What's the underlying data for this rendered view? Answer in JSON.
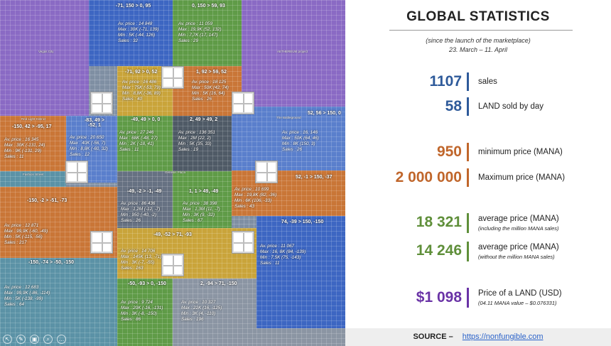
{
  "map": {
    "tools": [
      "↖",
      "✎",
      "▣",
      "⌕",
      "…"
    ],
    "place_names": {
      "vegas": "Vegas City",
      "aethereum": "AETHEREUM project",
      "red_light": "Red Light District",
      "battleground": "The Battleground",
      "genesis": "Genesis Plaza",
      "fashion": "Fashion Street"
    },
    "zones": [
      {
        "id": "z1",
        "label": "-71, 150 > 0, 95",
        "stats": [
          "Av. price : 14 848",
          "Max : 30K (-71, 139)",
          "Min : 5K (-44, 126)",
          "Sales : 32"
        ]
      },
      {
        "id": "z2",
        "label": "0, 150 > 59, 93",
        "stats": [
          "Av. price : 11 059",
          "Max : 19,9K (52, 132)",
          "Min : 7,7K (17, 147)",
          "Sales : 29"
        ]
      },
      {
        "id": "z3",
        "label": "-71, 92 > 0, 52",
        "stats": [
          "Av. price : 16 486",
          "Max : 75K (-53, 79)",
          "Min : 8,8K (-36, 89)",
          "Sales : 40"
        ]
      },
      {
        "id": "z4",
        "label": "1, 92 > 59, 52",
        "stats": [
          "Av. price : 18 125",
          "Max : 50K (42, 74)",
          "Min : 5K (16, 64)",
          "Sales : 26"
        ]
      },
      {
        "id": "z5",
        "label": "-150, 42 > -95, 17",
        "stats": [
          "Av. price : 16 345",
          "Max : 30K (-131, 24)",
          "Min : 9K (-131, 29)",
          "Sales : 11"
        ]
      },
      {
        "id": "z6",
        "label": "-83, 49 > -52, 1",
        "stats": [
          "Av. price : 20 650",
          "Max : 40K (-56, 7)",
          "Min : 8,8K (-60, 32)",
          "Sales : 12"
        ]
      },
      {
        "id": "z7",
        "label": "-49, 49 > 0, 0",
        "stats": [
          "Av. price : 27 246",
          "Max : 68K (-48, 27)",
          "Min : 2K (-18, 41)",
          "Sales : 11"
        ]
      },
      {
        "id": "z8",
        "label": "2, 49 > 49, 2",
        "stats": [
          "Av. price : 136 351",
          "Max : 2M (22, 2)",
          "Min : 5K (35, 33)",
          "Sales : 19"
        ]
      },
      {
        "id": "z9",
        "label": "52, 56 > 150, 0",
        "stats": [
          "Av. price : 16, 146",
          "Max : 50K (64, 46)",
          "Min : 8K (150, 3)",
          "Sales : 26"
        ]
      },
      {
        "id": "z10",
        "label": "-150, -2 > -51, -73",
        "stats": [
          "Av. price : 12 871",
          "Max : 99,9K (-60, -49)",
          "Min : 5K (-115, -56)",
          "Sales : 217"
        ]
      },
      {
        "id": "z11",
        "label": "-49, -2 > -1, -49",
        "stats": [
          "Av. price : 86 436",
          "Max : 1,2M (-12, -7)",
          "Min : 950 (-40, -2)",
          "Sales : 26"
        ]
      },
      {
        "id": "z12",
        "label": "1, 1 > 49, -49",
        "stats": [
          "Av. price : 38 398",
          "Max : 1,3M (11, -7)",
          "Min : 3K (9, -32)",
          "Sales : 67"
        ]
      },
      {
        "id": "z13",
        "label": "52, -1 > 150, -37",
        "stats": [
          "Av. price : 10 699",
          "Max : 19,8K (82, -36)",
          "Min : 6K (106, -33)",
          "Sales : 43"
        ]
      },
      {
        "id": "z14",
        "label": "-49, -52 > 71, -93",
        "stats": [
          "Av. price : 14 706",
          "Max : 145K (13, -71)",
          "Min : 3K (-7, -55)",
          "Sales : 163"
        ]
      },
      {
        "id": "z15",
        "label": "74, -39 > 150, -150",
        "stats": [
          "Av. price : 11 067",
          "Max : 16, 8K (84, -139)",
          "Min : 7,5K (75, -143)",
          "Sales : 11"
        ]
      },
      {
        "id": "z16",
        "label": "-150, -74 > -50, -150",
        "stats": [
          "Av. price : 12 683",
          "Max : 99,9K (-86, -114)",
          "Min : 5K (-138, -99)",
          "Sales : 64"
        ]
      },
      {
        "id": "z17",
        "label": "-50, -93 > 0, -150",
        "stats": [
          "Av. price : 9 724",
          "Max : 20K (-16, -131)",
          "Min : 3K (-8, -150)",
          "Sales : 86"
        ]
      },
      {
        "id": "z18",
        "label": "2, -94 > 71, -150",
        "stats": [
          "Av. price : 10 327",
          "Max : 22K (16, -125)",
          "Min : 3K (4, -110)",
          "Sales : 196"
        ]
      }
    ]
  },
  "panel": {
    "title": "GLOBAL STATISTICS",
    "subtitle_1": "(since the launch of the marketplace)",
    "subtitle_2": "23. March – 11. April",
    "stats": [
      {
        "value": "1107",
        "label": "sales",
        "note": "",
        "color": "#2e5a9a"
      },
      {
        "value": "58",
        "label": "LAND sold by day",
        "note": "",
        "color": "#2e5a9a"
      },
      {
        "value": "950",
        "label": "minimum price (MANA)",
        "note": "",
        "color": "#c0662b"
      },
      {
        "value": "2 000 000",
        "label": "Maximum price (MANA)",
        "note": "",
        "color": "#c0662b"
      },
      {
        "value": "18 321",
        "label": "average price (MANA)",
        "note": "(including the million MANA sales)",
        "color": "#5f8f3a"
      },
      {
        "value": "14 246",
        "label": "average price (MANA)",
        "note": "(without the million MANA sales)",
        "color": "#5f8f3a"
      },
      {
        "value": "$1 098",
        "label": "Price of a LAND (USD)",
        "note": "(04.11 MANA value – $0.076331)",
        "color": "#6a33a6"
      }
    ],
    "source_label": "SOURCE –",
    "source_link": "https://nonfungible.com"
  }
}
